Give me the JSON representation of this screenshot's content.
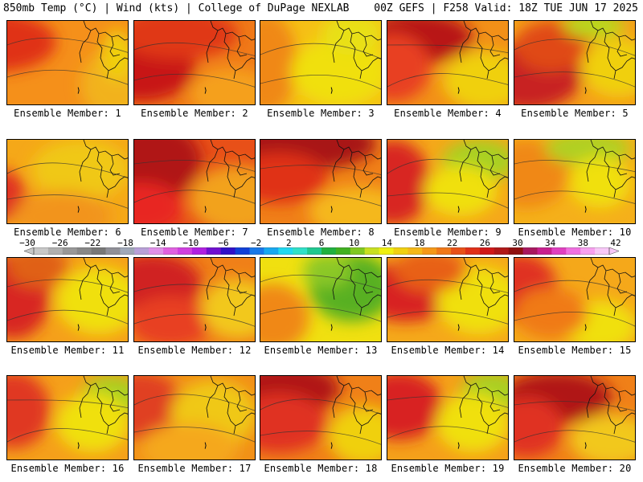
{
  "header": {
    "left_title": "850mb Temp (°C) | Wind (kts) | College of DuPage NEXLAB",
    "right_title": "00Z GEFS | F258 Valid: 18Z TUE JUN 17 2025"
  },
  "panels": [
    {
      "label": "Ensemble Member: 1",
      "base": "#f5901a",
      "blobs": [
        [
          "#e03018",
          -0.1,
          0.25,
          0.5,
          0.35
        ],
        [
          "#f2b21a",
          0.95,
          0.75,
          0.35,
          0.45
        ],
        [
          "#f0d010",
          0.9,
          0.4,
          0.12,
          0.3
        ]
      ]
    },
    {
      "label": "Ensemble Member: 2",
      "base": "#f07a18",
      "blobs": [
        [
          "#c81818",
          0.05,
          0.55,
          0.45,
          0.4
        ],
        [
          "#e03818",
          0.35,
          0.15,
          0.5,
          0.3
        ],
        [
          "#f5a01a",
          0.8,
          0.85,
          0.35,
          0.3
        ]
      ]
    },
    {
      "label": "Ensemble Member: 3",
      "base": "#f5c016",
      "blobs": [
        [
          "#f08818",
          0.05,
          0.5,
          0.25,
          0.6
        ],
        [
          "#f0e010",
          0.65,
          0.6,
          0.4,
          0.4
        ],
        [
          "#e8e018",
          0.75,
          0.15,
          0.25,
          0.25
        ]
      ]
    },
    {
      "label": "Ensemble Member: 4",
      "base": "#f29018",
      "blobs": [
        [
          "#b81818",
          0.25,
          0.2,
          0.45,
          0.3
        ],
        [
          "#e84020",
          0.05,
          0.55,
          0.3,
          0.4
        ],
        [
          "#f0d010",
          0.8,
          0.7,
          0.35,
          0.35
        ]
      ]
    },
    {
      "label": "Ensemble Member: 5",
      "base": "#f5a01a",
      "blobs": [
        [
          "#c82020",
          0.1,
          0.65,
          0.45,
          0.4
        ],
        [
          "#e04a18",
          0.3,
          0.3,
          0.3,
          0.3
        ],
        [
          "#b8d81a",
          0.65,
          0.05,
          0.25,
          0.15
        ],
        [
          "#f0d010",
          0.85,
          0.55,
          0.3,
          0.35
        ]
      ]
    },
    {
      "label": "Ensemble Member: 6",
      "base": "#f5a818",
      "blobs": [
        [
          "#e03020",
          -0.05,
          0.65,
          0.2,
          0.3
        ],
        [
          "#f0c818",
          0.6,
          0.35,
          0.4,
          0.35
        ],
        [
          "#f2941a",
          0.45,
          0.9,
          0.4,
          0.3
        ]
      ]
    },
    {
      "label": "Ensemble Member: 7",
      "base": "#e85018",
      "blobs": [
        [
          "#b01818",
          0.15,
          0.25,
          0.4,
          0.45
        ],
        [
          "#e82820",
          0.05,
          0.8,
          0.35,
          0.3
        ],
        [
          "#f2a21a",
          0.85,
          0.7,
          0.4,
          0.4
        ]
      ]
    },
    {
      "label": "Ensemble Member: 8",
      "base": "#f08018",
      "blobs": [
        [
          "#a81818",
          0.35,
          0.05,
          0.6,
          0.3
        ],
        [
          "#e03018",
          0.15,
          0.45,
          0.4,
          0.3
        ],
        [
          "#f5b81a",
          0.8,
          0.85,
          0.4,
          0.3
        ]
      ]
    },
    {
      "label": "Ensemble Member: 9",
      "base": "#f5a81a",
      "blobs": [
        [
          "#d82820",
          0.05,
          0.5,
          0.3,
          0.5
        ],
        [
          "#a8d020",
          0.75,
          0.25,
          0.3,
          0.25
        ],
        [
          "#f0e010",
          0.6,
          0.6,
          0.3,
          0.3
        ]
      ]
    },
    {
      "label": "Ensemble Member: 10",
      "base": "#f5b01a",
      "blobs": [
        [
          "#f08818",
          0.1,
          0.4,
          0.35,
          0.4
        ],
        [
          "#b0d020",
          0.6,
          0.1,
          0.35,
          0.2
        ],
        [
          "#f0e010",
          0.7,
          0.5,
          0.25,
          0.3
        ]
      ]
    },
    {
      "label": "Ensemble Member: 11",
      "base": "#f5a01a",
      "blobs": [
        [
          "#d82820",
          0.05,
          0.45,
          0.3,
          0.5
        ],
        [
          "#f0e010",
          0.75,
          0.5,
          0.35,
          0.4
        ],
        [
          "#e06018",
          0.25,
          0.1,
          0.25,
          0.25
        ]
      ]
    },
    {
      "label": "Ensemble Member: 12",
      "base": "#f08018",
      "blobs": [
        [
          "#d02020",
          0.15,
          0.3,
          0.4,
          0.35
        ],
        [
          "#e84020",
          0.3,
          0.75,
          0.35,
          0.3
        ],
        [
          "#f2c81a",
          0.85,
          0.6,
          0.3,
          0.35
        ]
      ]
    },
    {
      "label": "Ensemble Member: 13",
      "base": "#f0e010",
      "blobs": [
        [
          "#58b020",
          0.75,
          0.35,
          0.35,
          0.4
        ],
        [
          "#f08818",
          0.1,
          0.7,
          0.3,
          0.4
        ],
        [
          "#8cc828",
          0.55,
          0.15,
          0.2,
          0.2
        ]
      ]
    },
    {
      "label": "Ensemble Member: 14",
      "base": "#f5a81a",
      "blobs": [
        [
          "#d82020",
          0.15,
          0.4,
          0.4,
          0.35
        ],
        [
          "#f0e010",
          0.75,
          0.5,
          0.35,
          0.4
        ],
        [
          "#e86018",
          0.35,
          0.15,
          0.3,
          0.25
        ]
      ]
    },
    {
      "label": "Ensemble Member: 15",
      "base": "#f5a81a",
      "blobs": [
        [
          "#e03020",
          0.05,
          0.35,
          0.3,
          0.4
        ],
        [
          "#f0e010",
          0.7,
          0.8,
          0.3,
          0.3
        ],
        [
          "#f07a18",
          0.3,
          0.65,
          0.3,
          0.3
        ]
      ]
    },
    {
      "label": "Ensemble Member: 16",
      "base": "#f5a01a",
      "blobs": [
        [
          "#e03820",
          0.05,
          0.4,
          0.3,
          0.45
        ],
        [
          "#a8d020",
          0.85,
          0.25,
          0.25,
          0.25
        ],
        [
          "#f0e010",
          0.7,
          0.55,
          0.3,
          0.35
        ]
      ]
    },
    {
      "label": "Ensemble Member: 17",
      "base": "#f29018",
      "blobs": [
        [
          "#e04020",
          0.05,
          0.35,
          0.35,
          0.4
        ],
        [
          "#f0c818",
          0.65,
          0.45,
          0.35,
          0.4
        ],
        [
          "#f5a81a",
          0.45,
          0.85,
          0.4,
          0.3
        ]
      ]
    },
    {
      "label": "Ensemble Member: 18",
      "base": "#f08018",
      "blobs": [
        [
          "#b01818",
          0.2,
          0.15,
          0.45,
          0.3
        ],
        [
          "#e03020",
          0.15,
          0.55,
          0.4,
          0.35
        ],
        [
          "#f0d010",
          0.85,
          0.7,
          0.3,
          0.35
        ]
      ]
    },
    {
      "label": "Ensemble Member: 19",
      "base": "#f5a01a",
      "blobs": [
        [
          "#d82020",
          0.1,
          0.35,
          0.35,
          0.4
        ],
        [
          "#a8d020",
          0.85,
          0.2,
          0.25,
          0.25
        ],
        [
          "#f0e010",
          0.7,
          0.55,
          0.3,
          0.35
        ]
      ]
    },
    {
      "label": "Ensemble Member: 20",
      "base": "#f08018",
      "blobs": [
        [
          "#b01818",
          0.35,
          0.25,
          0.45,
          0.3
        ],
        [
          "#e03020",
          0.1,
          0.6,
          0.3,
          0.35
        ],
        [
          "#f2c81a",
          0.8,
          0.75,
          0.35,
          0.3
        ]
      ]
    }
  ],
  "colorbar": {
    "labels": [
      "−30",
      "−26",
      "−22",
      "−18",
      "−14",
      "−10",
      "−6",
      "−2",
      "2",
      "6",
      "10",
      "14",
      "18",
      "22",
      "26",
      "30",
      "34",
      "38",
      "42"
    ],
    "colors": [
      "#c8c8c8",
      "#b0b0b0",
      "#989898",
      "#888888",
      "#787878",
      "#909098",
      "#a0a8b8",
      "#b8a0d8",
      "#e090e8",
      "#e060e0",
      "#d040e0",
      "#b020e0",
      "#7010d0",
      "#3010c8",
      "#1040d8",
      "#1878e8",
      "#18a8f0",
      "#20d8f0",
      "#30e0c8",
      "#20c890",
      "#20b040",
      "#40b020",
      "#80c820",
      "#c8e020",
      "#f0f010",
      "#f0d010",
      "#f5b818",
      "#f59818",
      "#f07818",
      "#e85018",
      "#e03018",
      "#d01818",
      "#b01818",
      "#901010",
      "#a81860",
      "#c82090",
      "#e040c0",
      "#f070e0",
      "#f8a0f0",
      "#f8c8f8"
    ]
  }
}
